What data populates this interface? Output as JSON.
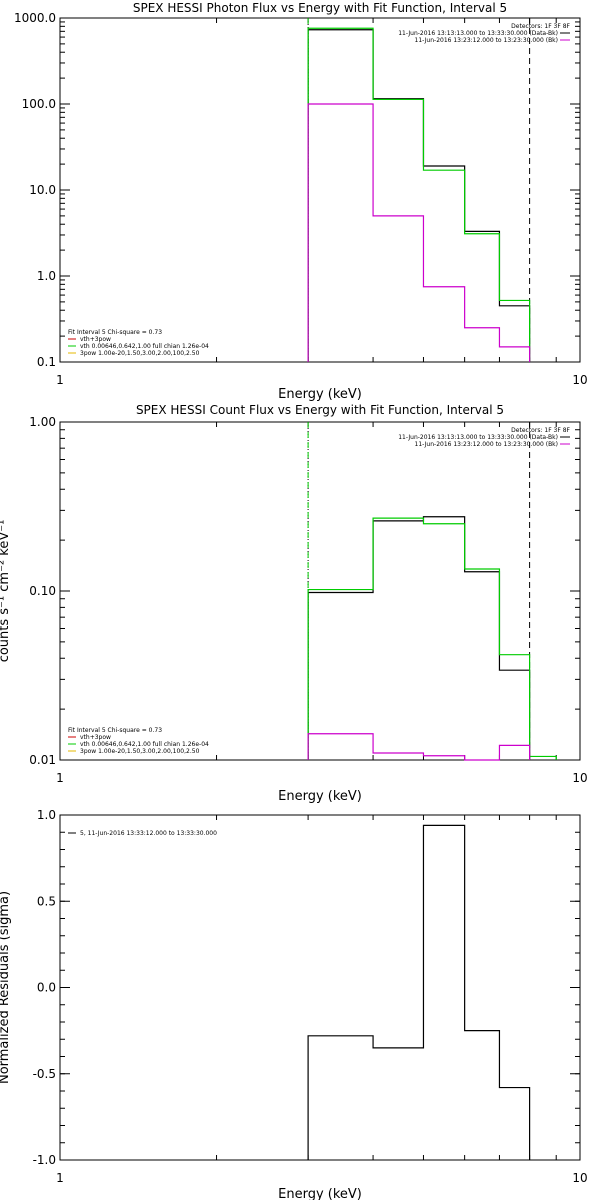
{
  "panels": [
    {
      "title": "SPEX HESSI Photon Flux vs Energy with Fit Function, Interval 5",
      "xlabel": "Energy (keV)",
      "ylabel": "",
      "legend_right": {
        "header": "Detectors: 1F 3F 8F",
        "items": [
          {
            "text": "11-Jun-2016 13:13:13.000 to 13:33:30.000 (Data-Bk)",
            "color": "#000000"
          },
          {
            "text": "11-Jun-2016 13:23:12.000 to 13:23:30.000 (Bk)",
            "color": "#cc00cc"
          }
        ]
      },
      "legend_left": {
        "header": "Fit Interval 5   Chi-square = 0.73",
        "items": [
          {
            "text": "vth+3pow",
            "color": "#cc0000"
          },
          {
            "text": "vth 0.00646,0.642,1.00  full chian 1.26e-04",
            "color": "#00cc00"
          },
          {
            "text": "3pow 1.00e-20,1.50,3.00,2.00,100,2.50",
            "color": "#e6b800"
          }
        ]
      },
      "chart_data": {
        "type": "line",
        "xscale": "log",
        "yscale": "log",
        "xlim": [
          1,
          10
        ],
        "ylim": [
          0.1,
          1000
        ],
        "xticks": [
          {
            "v": 1,
            "label": "1"
          },
          {
            "v": 10,
            "label": "10"
          }
        ],
        "yticks": [
          {
            "v": 0.1,
            "label": "0.1"
          },
          {
            "v": 1,
            "label": "1.0"
          },
          {
            "v": 10,
            "label": "10.0"
          },
          {
            "v": 100,
            "label": "100.0"
          },
          {
            "v": 1000,
            "label": "1000.0"
          }
        ],
        "edges": [
          3.0,
          4.0,
          5.0,
          6.0,
          7.0,
          8.0
        ],
        "series": [
          {
            "color": "#000000",
            "values": [
              730,
              115,
              19,
              3.3,
              0.45
            ]
          },
          {
            "color": "#00cc00",
            "values": [
              760,
              113,
              17,
              3.1,
              0.52
            ]
          },
          {
            "color": "#cc00cc",
            "values": [
              100,
              5.0,
              0.75,
              0.25,
              0.15
            ]
          }
        ],
        "vlines": [
          {
            "x": 3.0,
            "style": "dotted",
            "color": "#000000"
          },
          {
            "x": 3.0,
            "style": "dashed",
            "color": "#00cc00"
          },
          {
            "x": 8.0,
            "style": "dashed",
            "color": "#000000"
          }
        ]
      }
    },
    {
      "title": "SPEX HESSI Count Flux vs Energy with Fit Function, Interval 5",
      "xlabel": "Energy (keV)",
      "ylabel": "counts s⁻¹ cm⁻² keV⁻¹",
      "legend_right": {
        "header": "Detectors: 1F 3F 8F",
        "items": [
          {
            "text": "11-Jun-2016 13:13:13.000 to 13:33:30.000 (Data-Bk)",
            "color": "#000000"
          },
          {
            "text": "11-Jun-2016 13:23:12.000 to 13:23:30.000 (Bk)",
            "color": "#cc00cc"
          }
        ]
      },
      "legend_left": {
        "header": "Fit Interval 5   Chi-square = 0.73",
        "items": [
          {
            "text": "vth+3pow",
            "color": "#cc0000"
          },
          {
            "text": "vth 0.00646,0.642,1.00  full chian 1.26e-04",
            "color": "#00cc00"
          },
          {
            "text": "3pow 1.00e-20,1.50,3.00,2.00,100,2.50",
            "color": "#e6b800"
          }
        ]
      },
      "chart_data": {
        "type": "line",
        "xscale": "log",
        "yscale": "log",
        "xlim": [
          1,
          10
        ],
        "ylim": [
          0.01,
          1.0
        ],
        "xticks": [
          {
            "v": 1,
            "label": "1"
          },
          {
            "v": 10,
            "label": "10"
          }
        ],
        "yticks": [
          {
            "v": 0.01,
            "label": "0.01"
          },
          {
            "v": 0.1,
            "label": "0.10"
          },
          {
            "v": 1,
            "label": "1.00"
          }
        ],
        "edges": [
          3.0,
          4.0,
          5.0,
          6.0,
          7.0,
          8.0,
          9.0
        ],
        "series": [
          {
            "color": "#000000",
            "values": [
              0.098,
              0.26,
              0.275,
              0.13,
              0.034,
              null
            ]
          },
          {
            "color": "#00cc00",
            "values": [
              0.102,
              0.27,
              0.25,
              0.135,
              0.042,
              0.0105
            ]
          },
          {
            "color": "#cc00cc",
            "values": [
              0.0143,
              0.011,
              0.0106,
              0.01,
              0.0122,
              null
            ]
          }
        ],
        "vlines": [
          {
            "x": 3.0,
            "style": "dotted",
            "color": "#000000"
          },
          {
            "x": 3.0,
            "style": "dashed",
            "color": "#00cc00"
          },
          {
            "x": 8.0,
            "style": "dashed",
            "color": "#000000"
          }
        ]
      }
    },
    {
      "title": "",
      "xlabel": "Energy (keV)",
      "ylabel": "Normalized Residuals (sigma)",
      "legend_left": {
        "header": "",
        "items": [
          {
            "text": "5, 11-Jun-2016 13:33:12.000 to 13:33:30.000",
            "color": "#000000"
          }
        ]
      },
      "chart_data": {
        "type": "line",
        "xscale": "log",
        "yscale": "linear",
        "xlim": [
          1,
          10
        ],
        "ylim": [
          -1.0,
          1.0
        ],
        "xticks": [
          {
            "v": 1,
            "label": "1"
          },
          {
            "v": 10,
            "label": "10"
          }
        ],
        "yticks": [
          {
            "v": -1.0,
            "label": "-1.0"
          },
          {
            "v": -0.5,
            "label": "-0.5"
          },
          {
            "v": 0.0,
            "label": "0.0"
          },
          {
            "v": 0.5,
            "label": "0.5"
          },
          {
            "v": 1.0,
            "label": "1.0"
          }
        ],
        "edges": [
          3.0,
          4.0,
          5.0,
          6.0,
          7.0,
          8.0
        ],
        "series": [
          {
            "color": "#000000",
            "values": [
              -0.28,
              -0.35,
              0.94,
              -0.25,
              -0.58
            ]
          }
        ],
        "vlines": []
      }
    }
  ]
}
